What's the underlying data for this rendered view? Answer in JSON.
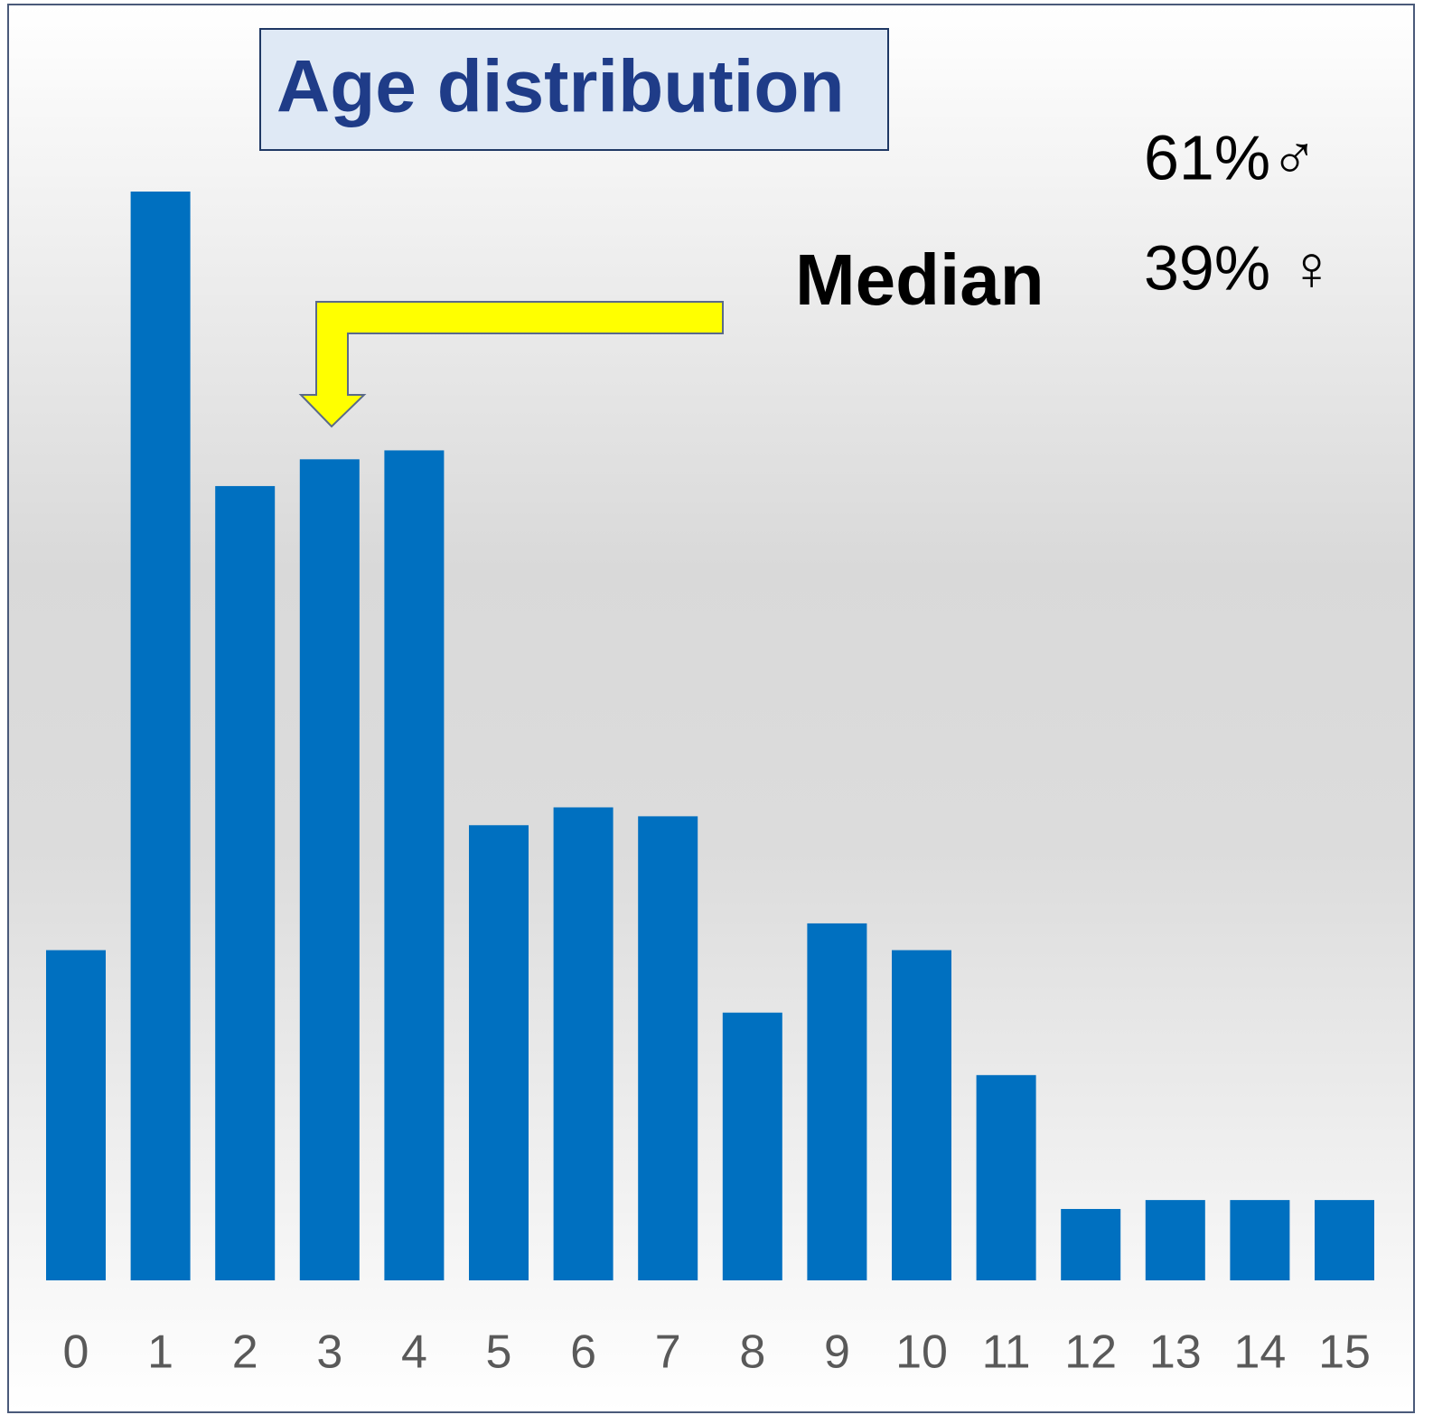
{
  "chart_data": {
    "type": "bar",
    "title": "Age distribution",
    "categories": [
      "0",
      "1",
      "2",
      "3",
      "4",
      "5",
      "6",
      "7",
      "8",
      "9",
      "10",
      "11",
      "12",
      "13",
      "14",
      "15"
    ],
    "values": [
      37,
      122,
      89,
      92,
      93,
      51,
      53,
      52,
      30,
      40,
      37,
      23,
      8,
      9,
      9,
      9
    ],
    "color": "#0070c0",
    "annotations": {
      "median": "Median",
      "male": "61%♂",
      "female": "39% ♀"
    }
  }
}
